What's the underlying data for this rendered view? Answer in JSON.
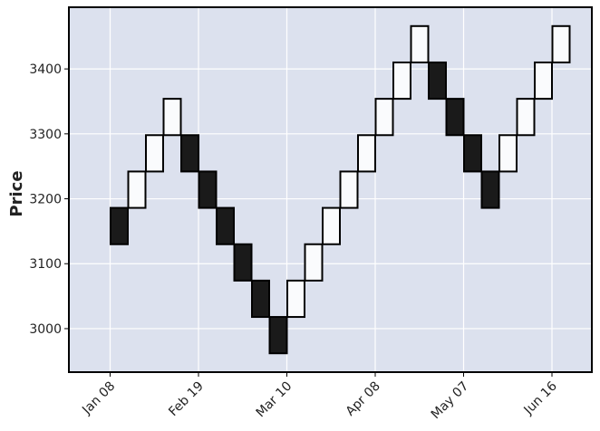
{
  "chart_data": {
    "type": "renko",
    "ylabel": "Price",
    "xlabel": "",
    "title": "",
    "ylim": [
      2933,
      3495
    ],
    "yticks": [
      3000,
      3100,
      3200,
      3300,
      3400
    ],
    "xticks": [
      "Jan 08",
      "Feb 19",
      "Mar 10",
      "Apr 08",
      "May 07",
      "Jun 16"
    ],
    "grid": true,
    "colors": {
      "up": "#fafbfd",
      "down": "#1a1a1a",
      "edge": "#000000",
      "background": "#dce1ee",
      "grid": "#ffffff"
    },
    "box_size": 56,
    "bricks": [
      {
        "low": 3130,
        "high": 3186,
        "dir": "down"
      },
      {
        "low": 3186,
        "high": 3242,
        "dir": "up"
      },
      {
        "low": 3242,
        "high": 3298,
        "dir": "up"
      },
      {
        "low": 3298,
        "high": 3354,
        "dir": "up"
      },
      {
        "low": 3242,
        "high": 3298,
        "dir": "down"
      },
      {
        "low": 3186,
        "high": 3242,
        "dir": "down"
      },
      {
        "low": 3130,
        "high": 3186,
        "dir": "down"
      },
      {
        "low": 3074,
        "high": 3130,
        "dir": "down"
      },
      {
        "low": 3018,
        "high": 3074,
        "dir": "down"
      },
      {
        "low": 2962,
        "high": 3018,
        "dir": "down"
      },
      {
        "low": 3018,
        "high": 3074,
        "dir": "up"
      },
      {
        "low": 3074,
        "high": 3130,
        "dir": "up"
      },
      {
        "low": 3130,
        "high": 3186,
        "dir": "up"
      },
      {
        "low": 3186,
        "high": 3242,
        "dir": "up"
      },
      {
        "low": 3242,
        "high": 3298,
        "dir": "up"
      },
      {
        "low": 3298,
        "high": 3354,
        "dir": "up"
      },
      {
        "low": 3354,
        "high": 3410,
        "dir": "up"
      },
      {
        "low": 3410,
        "high": 3466,
        "dir": "up"
      },
      {
        "low": 3354,
        "high": 3410,
        "dir": "down"
      },
      {
        "low": 3298,
        "high": 3354,
        "dir": "down"
      },
      {
        "low": 3242,
        "high": 3298,
        "dir": "down"
      },
      {
        "low": 3186,
        "high": 3242,
        "dir": "down"
      },
      {
        "low": 3242,
        "high": 3298,
        "dir": "up"
      },
      {
        "low": 3298,
        "high": 3354,
        "dir": "up"
      },
      {
        "low": 3354,
        "high": 3410,
        "dir": "up"
      },
      {
        "low": 3410,
        "high": 3466,
        "dir": "up"
      }
    ]
  }
}
